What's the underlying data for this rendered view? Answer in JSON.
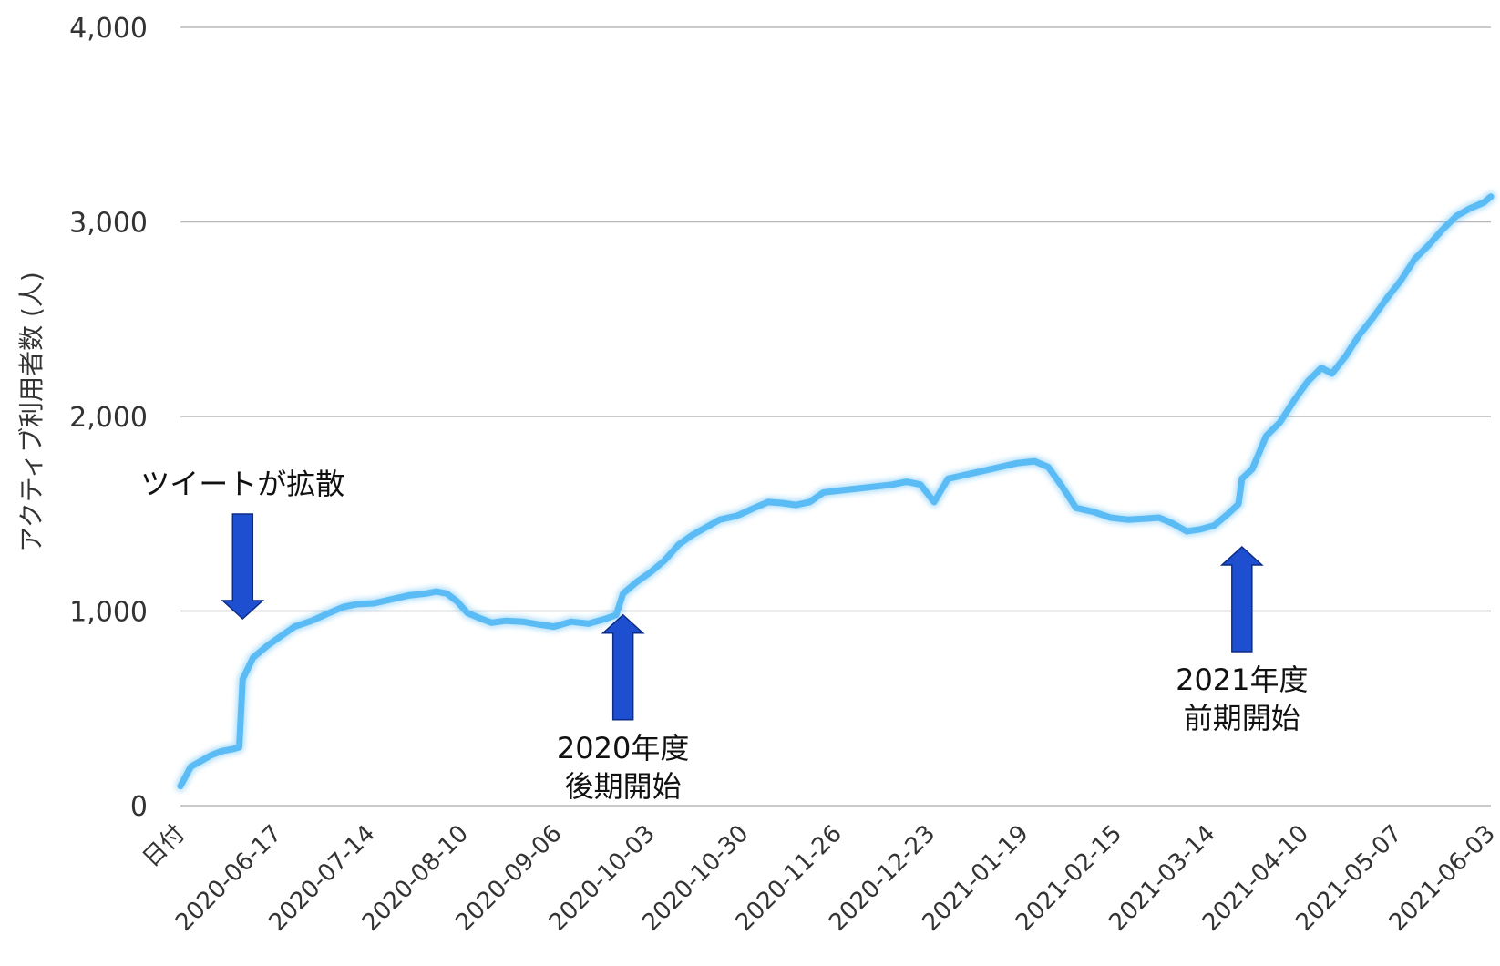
{
  "chart_data": {
    "type": "line",
    "title": "",
    "xlabel": "",
    "ylabel": "アクティブ利用者数 (人)",
    "ylim": [
      0,
      4000
    ],
    "yticks": [
      0,
      1000,
      2000,
      3000,
      4000
    ],
    "ytick_labels": [
      "0",
      "1,000",
      "2,000",
      "3,000",
      "4,000"
    ],
    "xlim": [
      "2020-05-20",
      "2021-06-03"
    ],
    "xtick_labels": [
      "日付",
      "2020-06-17",
      "2020-07-14",
      "2020-08-10",
      "2020-09-06",
      "2020-10-03",
      "2020-10-30",
      "2020-11-26",
      "2020-12-23",
      "2021-01-19",
      "2021-02-15",
      "2021-03-14",
      "2021-04-10",
      "2021-05-07",
      "2021-06-03"
    ],
    "xtick_dates": [
      "2020-05-20",
      "2020-06-17",
      "2020-07-14",
      "2020-08-10",
      "2020-09-06",
      "2020-10-03",
      "2020-10-30",
      "2020-11-26",
      "2020-12-23",
      "2021-01-19",
      "2021-02-15",
      "2021-03-14",
      "2021-04-10",
      "2021-05-07",
      "2021-06-03"
    ],
    "grid": true,
    "line_color": "#5bbcf5",
    "arrow_color": "#1f4fd1",
    "series": [
      {
        "name": "",
        "points": [
          [
            "2020-05-20",
            100
          ],
          [
            "2020-05-23",
            200
          ],
          [
            "2020-05-26",
            230
          ],
          [
            "2020-05-29",
            260
          ],
          [
            "2020-06-01",
            280
          ],
          [
            "2020-06-04",
            290
          ],
          [
            "2020-06-06",
            300
          ],
          [
            "2020-06-07",
            650
          ],
          [
            "2020-06-10",
            760
          ],
          [
            "2020-06-14",
            820
          ],
          [
            "2020-06-18",
            870
          ],
          [
            "2020-06-22",
            920
          ],
          [
            "2020-06-27",
            950
          ],
          [
            "2020-07-02",
            990
          ],
          [
            "2020-07-06",
            1020
          ],
          [
            "2020-07-10",
            1035
          ],
          [
            "2020-07-15",
            1040
          ],
          [
            "2020-07-20",
            1060
          ],
          [
            "2020-07-25",
            1080
          ],
          [
            "2020-07-30",
            1090
          ],
          [
            "2020-08-02",
            1100
          ],
          [
            "2020-08-05",
            1090
          ],
          [
            "2020-08-08",
            1050
          ],
          [
            "2020-08-11",
            990
          ],
          [
            "2020-08-15",
            960
          ],
          [
            "2020-08-18",
            940
          ],
          [
            "2020-08-22",
            950
          ],
          [
            "2020-08-27",
            945
          ],
          [
            "2020-09-01",
            930
          ],
          [
            "2020-09-05",
            920
          ],
          [
            "2020-09-10",
            945
          ],
          [
            "2020-09-15",
            935
          ],
          [
            "2020-09-20",
            960
          ],
          [
            "2020-09-23",
            980
          ],
          [
            "2020-09-25",
            1090
          ],
          [
            "2020-09-29",
            1150
          ],
          [
            "2020-10-03",
            1200
          ],
          [
            "2020-10-07",
            1260
          ],
          [
            "2020-10-11",
            1340
          ],
          [
            "2020-10-15",
            1390
          ],
          [
            "2020-10-19",
            1430
          ],
          [
            "2020-10-23",
            1470
          ],
          [
            "2020-10-28",
            1490
          ],
          [
            "2020-11-02",
            1530
          ],
          [
            "2020-11-06",
            1560
          ],
          [
            "2020-11-10",
            1555
          ],
          [
            "2020-11-14",
            1545
          ],
          [
            "2020-11-18",
            1560
          ],
          [
            "2020-11-22",
            1610
          ],
          [
            "2020-11-27",
            1620
          ],
          [
            "2020-12-02",
            1630
          ],
          [
            "2020-12-07",
            1640
          ],
          [
            "2020-12-12",
            1650
          ],
          [
            "2020-12-16",
            1665
          ],
          [
            "2020-12-20",
            1650
          ],
          [
            "2020-12-24",
            1560
          ],
          [
            "2020-12-28",
            1680
          ],
          [
            "2021-01-02",
            1700
          ],
          [
            "2021-01-07",
            1720
          ],
          [
            "2021-01-12",
            1740
          ],
          [
            "2021-01-17",
            1760
          ],
          [
            "2021-01-22",
            1770
          ],
          [
            "2021-01-26",
            1740
          ],
          [
            "2021-01-30",
            1640
          ],
          [
            "2021-02-03",
            1530
          ],
          [
            "2021-02-08",
            1510
          ],
          [
            "2021-02-13",
            1480
          ],
          [
            "2021-02-18",
            1470
          ],
          [
            "2021-02-23",
            1475
          ],
          [
            "2021-02-27",
            1480
          ],
          [
            "2021-03-03",
            1450
          ],
          [
            "2021-03-07",
            1410
          ],
          [
            "2021-03-11",
            1420
          ],
          [
            "2021-03-15",
            1440
          ],
          [
            "2021-03-19",
            1500
          ],
          [
            "2021-03-22",
            1550
          ],
          [
            "2021-03-23",
            1680
          ],
          [
            "2021-03-26",
            1730
          ],
          [
            "2021-03-30",
            1900
          ],
          [
            "2021-04-03",
            1970
          ],
          [
            "2021-04-07",
            2080
          ],
          [
            "2021-04-11",
            2180
          ],
          [
            "2021-04-15",
            2250
          ],
          [
            "2021-04-18",
            2220
          ],
          [
            "2021-04-22",
            2310
          ],
          [
            "2021-04-26",
            2420
          ],
          [
            "2021-04-30",
            2510
          ],
          [
            "2021-05-04",
            2610
          ],
          [
            "2021-05-08",
            2700
          ],
          [
            "2021-05-12",
            2810
          ],
          [
            "2021-05-16",
            2880
          ],
          [
            "2021-05-20",
            2960
          ],
          [
            "2021-05-24",
            3030
          ],
          [
            "2021-05-28",
            3070
          ],
          [
            "2021-06-01",
            3100
          ],
          [
            "2021-06-03",
            3130
          ]
        ]
      }
    ],
    "annotations": [
      {
        "lines": [
          "ツイートが拡散"
        ],
        "arrow": "down",
        "date": "2020-06-07",
        "value": 960
      },
      {
        "lines": [
          "2020年度",
          "後期開始"
        ],
        "arrow": "up",
        "date": "2020-09-25",
        "value": 980
      },
      {
        "lines": [
          "2021年度",
          "前期開始"
        ],
        "arrow": "up",
        "date": "2021-03-23",
        "value": 1330
      }
    ]
  }
}
